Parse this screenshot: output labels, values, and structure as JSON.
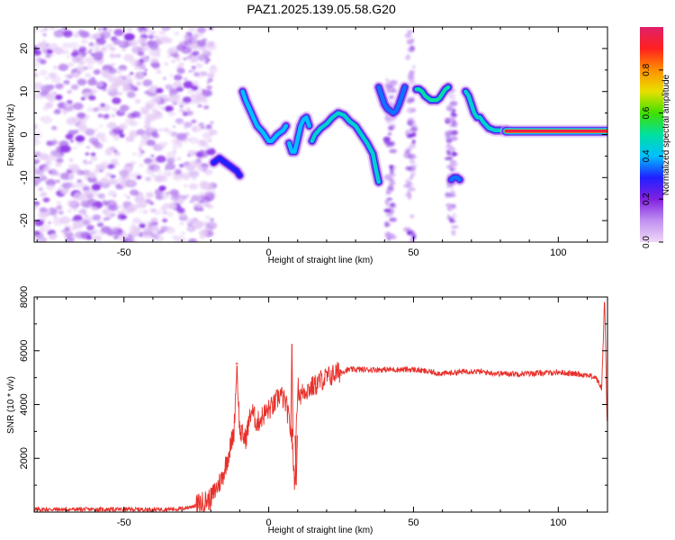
{
  "title": "PAZ1.2025.139.05.58.G20",
  "chart_data": [
    {
      "type": "heatmap",
      "xlabel": "Height of straight line (km)",
      "ylabel": "Frequency (Hz)",
      "xlim": [
        -81,
        117
      ],
      "ylim": [
        -25,
        25
      ],
      "xticks": [
        -50,
        0,
        50,
        100
      ],
      "yticks": [
        -20,
        -10,
        0,
        10,
        20
      ],
      "colorbar": {
        "label": "Normalized spectral amplitude",
        "range": [
          0,
          1
        ],
        "ticks": [
          0.0,
          0.2,
          0.4,
          0.6,
          0.8
        ],
        "colors": [
          "#f0d8f8",
          "#c090f0",
          "#8020e0",
          "#2020ff",
          "#00c0ff",
          "#00e0a0",
          "#40e000",
          "#e8e000",
          "#ff9000",
          "#ff2020",
          "#e0206a"
        ]
      },
      "noise_region_x": [
        -81,
        -19
      ],
      "ridges": [
        {
          "x": [
            -19,
            -17,
            -15,
            -13,
            -11,
            -10
          ],
          "y": [
            -6.5,
            -5.5,
            -6.5,
            -7.5,
            -8.5,
            -9.5
          ],
          "amp": 0.3
        },
        {
          "x": [
            -9,
            -8,
            -6,
            -4,
            -2,
            0,
            1,
            3,
            5,
            6
          ],
          "y": [
            10,
            8,
            5,
            2,
            0.5,
            -1.5,
            -1.5,
            0,
            1,
            2
          ],
          "amp": 0.4
        },
        {
          "x": [
            7,
            8,
            9,
            10,
            11,
            12,
            13,
            14
          ],
          "y": [
            -2,
            -4,
            -4,
            -1,
            2,
            3.5,
            4,
            2
          ],
          "amp": 0.4
        },
        {
          "x": [
            15,
            16,
            18,
            20,
            22,
            24,
            26,
            28,
            30,
            32,
            34,
            36,
            37,
            38
          ],
          "y": [
            -1.5,
            0,
            1.5,
            2.5,
            4,
            5,
            4.5,
            3,
            2,
            0,
            -2,
            -4.5,
            -8,
            -11
          ],
          "amp": 0.45
        },
        {
          "x": [
            38,
            39,
            40,
            41,
            42,
            43,
            44,
            45,
            46,
            47
          ],
          "y": [
            11,
            9,
            7,
            6,
            5.5,
            5,
            5.5,
            7,
            9,
            11
          ],
          "amp": 0.35
        },
        {
          "x": [
            51,
            52,
            53,
            54,
            55,
            56,
            57,
            58,
            59,
            60,
            61,
            62
          ],
          "y": [
            10.5,
            10.5,
            10,
            9,
            8.5,
            8,
            8,
            8,
            8.5,
            9.5,
            10.5,
            11
          ],
          "amp": 0.5
        },
        {
          "x": [
            63,
            64,
            65,
            66
          ],
          "y": [
            -10.5,
            -10,
            -10,
            -10.5
          ],
          "amp": 0.35
        },
        {
          "x": [
            68,
            69,
            70,
            71,
            72,
            73,
            74,
            76,
            78,
            80,
            82
          ],
          "y": [
            10,
            9,
            7,
            5,
            4,
            4,
            3,
            1.5,
            1,
            1,
            1
          ],
          "amp": 0.45
        },
        {
          "x": [
            82,
            86,
            90,
            94,
            98,
            102,
            106,
            110,
            114,
            117
          ],
          "y": [
            0.8,
            0.8,
            0.8,
            0.8,
            0.8,
            0.8,
            0.8,
            0.8,
            0.8,
            0.8
          ],
          "amp": 0.95
        }
      ],
      "vertical_streaks": [
        {
          "x": 49,
          "y": [
            -25,
            25
          ],
          "amp": 0.3
        },
        {
          "x": 63,
          "y": [
            -23,
            11
          ],
          "amp": 0.25
        },
        {
          "x": 42,
          "y": [
            -25,
            13
          ],
          "amp": 0.15
        }
      ]
    },
    {
      "type": "line",
      "xlabel": "Height of straight line (km)",
      "ylabel": "SNR (10 * v/v)",
      "xlim": [
        -81,
        117
      ],
      "ylim": [
        0,
        8000
      ],
      "xticks": [
        -50,
        0,
        50,
        100
      ],
      "yticks": [
        2000,
        4000,
        6000,
        8000
      ],
      "color": "#e8302a",
      "x": [
        -81,
        -60,
        -40,
        -30,
        -25,
        -20,
        -18,
        -16,
        -14,
        -12,
        -11,
        -10,
        -8,
        -6,
        -4,
        -2,
        0,
        2,
        4,
        6,
        8,
        9,
        10,
        11,
        12,
        14,
        16,
        18,
        20,
        22,
        24,
        26,
        28,
        30,
        35,
        40,
        50,
        60,
        70,
        80,
        90,
        100,
        110,
        113,
        115,
        116,
        117
      ],
      "y": [
        100,
        100,
        100,
        120,
        250,
        500,
        900,
        1300,
        2100,
        3000,
        5500,
        3000,
        2700,
        3800,
        3300,
        3600,
        3800,
        4000,
        4400,
        4000,
        2800,
        1000,
        4700,
        4300,
        4500,
        4600,
        4700,
        4900,
        5000,
        5100,
        5200,
        5250,
        5300,
        5300,
        5300,
        5300,
        5300,
        5150,
        5250,
        5150,
        5150,
        5200,
        5100,
        5000,
        4600,
        8000,
        2700
      ],
      "spikes": [
        {
          "x": -11,
          "y": 5550
        },
        {
          "x": 8,
          "y": 6250
        },
        {
          "x": 9.5,
          "y": 1000
        },
        {
          "x": 116,
          "y": 8000
        }
      ]
    }
  ]
}
